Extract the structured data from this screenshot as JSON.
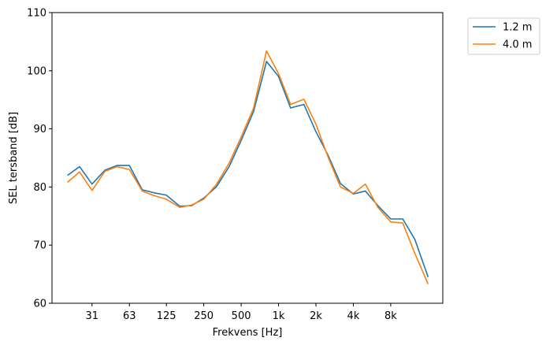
{
  "chart_data": {
    "type": "line",
    "xlabel": "Frekvens [Hz]",
    "ylabel": "SEL tersband [dB]",
    "xscale": "log",
    "xlim": [
      15.0,
      21000
    ],
    "ylim": [
      60,
      110
    ],
    "yticks": [
      60,
      70,
      80,
      90,
      100,
      110
    ],
    "xticks": [
      {
        "value": 31.5,
        "label": "31"
      },
      {
        "value": 63,
        "label": "63"
      },
      {
        "value": 125,
        "label": "125"
      },
      {
        "value": 250,
        "label": "250"
      },
      {
        "value": 500,
        "label": "500"
      },
      {
        "value": 1000,
        "label": "1k"
      },
      {
        "value": 2000,
        "label": "2k"
      },
      {
        "value": 4000,
        "label": "4k"
      },
      {
        "value": 8000,
        "label": "8k"
      }
    ],
    "x": [
      20,
      25,
      31.5,
      40,
      50,
      63,
      80,
      100,
      125,
      160,
      200,
      250,
      315,
      400,
      500,
      630,
      800,
      1000,
      1250,
      1600,
      2000,
      2500,
      3150,
      4000,
      5000,
      6300,
      8000,
      10000,
      12500,
      16000
    ],
    "series": [
      {
        "name": "1.2 m",
        "color": "#1f77b4",
        "values": [
          82.0,
          83.5,
          80.5,
          82.9,
          83.7,
          83.7,
          79.5,
          79.0,
          78.6,
          76.7,
          76.8,
          78.1,
          80.0,
          83.5,
          88.0,
          93.0,
          101.6,
          99.0,
          93.6,
          94.2,
          89.5,
          85.5,
          80.6,
          78.8,
          79.3,
          76.8,
          74.5,
          74.5,
          71.0,
          64.5
        ]
      },
      {
        "name": "4.0 m",
        "color": "#ff7f0e",
        "values": [
          80.8,
          82.6,
          79.4,
          82.7,
          83.5,
          83.0,
          79.3,
          78.5,
          77.9,
          76.5,
          76.9,
          77.9,
          80.4,
          84.1,
          88.6,
          93.6,
          103.4,
          99.5,
          94.2,
          95.1,
          90.8,
          85.2,
          80.0,
          78.9,
          80.5,
          76.5,
          74.0,
          73.8,
          68.6,
          63.3
        ]
      }
    ],
    "legend": {
      "placement": "outside-top-right",
      "entries": [
        "1.2 m",
        "4.0 m"
      ]
    },
    "grid": false
  }
}
